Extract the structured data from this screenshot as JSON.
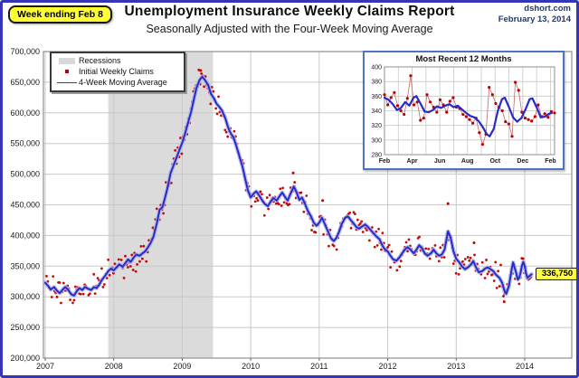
{
  "header": {
    "badge": "Week ending Feb 8",
    "title": "Unemployment Insurance Weekly Claims Report",
    "subtitle": "Seasonally Adjusted with the Four-Week Moving Average",
    "source": "dshort.com",
    "date": "February 13, 2014"
  },
  "legend": {
    "recessions": "Recessions",
    "weekly": "Initial Weekly Claims",
    "moving_average": "4-Week Moving Average"
  },
  "colors": {
    "ma_blue": "#2a2ac8",
    "ma_glow": "#aab4ea",
    "dot_red": "#c00000",
    "weekly_line_red": "#c56868",
    "recession_band": "#dbdbdb",
    "grid": "#c8c8c8",
    "plot_border": "#8f8f8f",
    "axis_text": "#1a1a1a",
    "outer_border": "#3535b8",
    "inset_border": "#4e76be",
    "callout_yellow": "#ffff44"
  },
  "chart_data": [
    {
      "type": "line",
      "title": "Unemployment Insurance Weekly Claims Report",
      "xlabel": "",
      "ylabel": "",
      "ylim": [
        200000,
        700000
      ],
      "xlim": [
        2007,
        2014.7
      ],
      "grid": true,
      "legend_position": "top-left",
      "y_ticks": [
        "700,000",
        "650,000",
        "600,000",
        "550,000",
        "500,000",
        "450,000",
        "400,000",
        "350,000",
        "300,000",
        "250,000",
        "200,000"
      ],
      "x_ticks": [
        "2007",
        "2008",
        "2009",
        "2010",
        "2011",
        "2012",
        "2013",
        "2014"
      ],
      "recession_band": {
        "start": 2007.92,
        "end": 2009.45
      },
      "latest": {
        "x": 2014.1,
        "value": 336750,
        "label": "336,750"
      },
      "series": [
        {
          "name": "4-Week Moving Average",
          "units": "thousands of claims",
          "points": [
            [
              2007.0,
              323
            ],
            [
              2007.04,
              318
            ],
            [
              2007.08,
              312
            ],
            [
              2007.13,
              316
            ],
            [
              2007.17,
              310
            ],
            [
              2007.21,
              306
            ],
            [
              2007.25,
              311
            ],
            [
              2007.29,
              316
            ],
            [
              2007.33,
              312
            ],
            [
              2007.38,
              304
            ],
            [
              2007.42,
              302
            ],
            [
              2007.46,
              309
            ],
            [
              2007.5,
              314
            ],
            [
              2007.54,
              311
            ],
            [
              2007.58,
              316
            ],
            [
              2007.63,
              313
            ],
            [
              2007.67,
              311
            ],
            [
              2007.71,
              316
            ],
            [
              2007.75,
              314
            ],
            [
              2007.79,
              320
            ],
            [
              2007.83,
              328
            ],
            [
              2007.88,
              335
            ],
            [
              2007.92,
              342
            ],
            [
              2007.96,
              346
            ],
            [
              2008.0,
              343
            ],
            [
              2008.04,
              348
            ],
            [
              2008.08,
              353
            ],
            [
              2008.13,
              349
            ],
            [
              2008.17,
              355
            ],
            [
              2008.21,
              361
            ],
            [
              2008.25,
              357
            ],
            [
              2008.29,
              364
            ],
            [
              2008.33,
              369
            ],
            [
              2008.38,
              367
            ],
            [
              2008.42,
              371
            ],
            [
              2008.46,
              374
            ],
            [
              2008.5,
              381
            ],
            [
              2008.54,
              388
            ],
            [
              2008.58,
              398
            ],
            [
              2008.63,
              420
            ],
            [
              2008.67,
              442
            ],
            [
              2008.71,
              446
            ],
            [
              2008.75,
              462
            ],
            [
              2008.79,
              480
            ],
            [
              2008.83,
              502
            ],
            [
              2008.88,
              516
            ],
            [
              2008.92,
              528
            ],
            [
              2008.96,
              540
            ],
            [
              2009.0,
              551
            ],
            [
              2009.04,
              566
            ],
            [
              2009.08,
              582
            ],
            [
              2009.13,
              602
            ],
            [
              2009.17,
              622
            ],
            [
              2009.21,
              641
            ],
            [
              2009.25,
              653
            ],
            [
              2009.29,
              659
            ],
            [
              2009.33,
              654
            ],
            [
              2009.38,
              645
            ],
            [
              2009.42,
              631
            ],
            [
              2009.46,
              624
            ],
            [
              2009.5,
              615
            ],
            [
              2009.54,
              610
            ],
            [
              2009.58,
              604
            ],
            [
              2009.63,
              591
            ],
            [
              2009.67,
              576
            ],
            [
              2009.71,
              566
            ],
            [
              2009.75,
              560
            ],
            [
              2009.79,
              546
            ],
            [
              2009.83,
              531
            ],
            [
              2009.88,
              512
            ],
            [
              2009.92,
              492
            ],
            [
              2009.96,
              473
            ],
            [
              2010.0,
              462
            ],
            [
              2010.04,
              468
            ],
            [
              2010.08,
              472
            ],
            [
              2010.13,
              464
            ],
            [
              2010.17,
              457
            ],
            [
              2010.21,
              451
            ],
            [
              2010.25,
              448
            ],
            [
              2010.29,
              455
            ],
            [
              2010.33,
              461
            ],
            [
              2010.38,
              457
            ],
            [
              2010.42,
              464
            ],
            [
              2010.46,
              470
            ],
            [
              2010.5,
              463
            ],
            [
              2010.54,
              457
            ],
            [
              2010.58,
              468
            ],
            [
              2010.63,
              480
            ],
            [
              2010.67,
              470
            ],
            [
              2010.71,
              458
            ],
            [
              2010.75,
              462
            ],
            [
              2010.79,
              452
            ],
            [
              2010.83,
              441
            ],
            [
              2010.88,
              431
            ],
            [
              2010.92,
              421
            ],
            [
              2010.96,
              416
            ],
            [
              2011.0,
              421
            ],
            [
              2011.04,
              429
            ],
            [
              2011.08,
              419
            ],
            [
              2011.13,
              406
            ],
            [
              2011.17,
              396
            ],
            [
              2011.21,
              391
            ],
            [
              2011.25,
              396
            ],
            [
              2011.29,
              406
            ],
            [
              2011.33,
              419
            ],
            [
              2011.38,
              429
            ],
            [
              2011.42,
              431
            ],
            [
              2011.46,
              425
            ],
            [
              2011.5,
              420
            ],
            [
              2011.54,
              414
            ],
            [
              2011.58,
              411
            ],
            [
              2011.63,
              415
            ],
            [
              2011.67,
              418
            ],
            [
              2011.71,
              414
            ],
            [
              2011.75,
              409
            ],
            [
              2011.79,
              404
            ],
            [
              2011.83,
              399
            ],
            [
              2011.88,
              394
            ],
            [
              2011.92,
              384
            ],
            [
              2011.96,
              377
            ],
            [
              2012.0,
              374
            ],
            [
              2012.04,
              367
            ],
            [
              2012.08,
              361
            ],
            [
              2012.13,
              359
            ],
            [
              2012.17,
              364
            ],
            [
              2012.21,
              371
            ],
            [
              2012.25,
              377
            ],
            [
              2012.29,
              381
            ],
            [
              2012.33,
              377
            ],
            [
              2012.38,
              371
            ],
            [
              2012.42,
              377
            ],
            [
              2012.46,
              384
            ],
            [
              2012.5,
              379
            ],
            [
              2012.54,
              371
            ],
            [
              2012.58,
              367
            ],
            [
              2012.63,
              371
            ],
            [
              2012.67,
              377
            ],
            [
              2012.71,
              371
            ],
            [
              2012.75,
              367
            ],
            [
              2012.79,
              369
            ],
            [
              2012.83,
              377
            ],
            [
              2012.88,
              407
            ],
            [
              2012.92,
              396
            ],
            [
              2012.96,
              374
            ],
            [
              2013.0,
              362
            ],
            [
              2013.04,
              357
            ],
            [
              2013.08,
              350
            ],
            [
              2013.13,
              345
            ],
            [
              2013.17,
              348
            ],
            [
              2013.21,
              352
            ],
            [
              2013.25,
              358
            ],
            [
              2013.29,
              348
            ],
            [
              2013.33,
              340
            ],
            [
              2013.38,
              342
            ],
            [
              2013.42,
              346
            ],
            [
              2013.46,
              348
            ],
            [
              2013.5,
              345
            ],
            [
              2013.54,
              342
            ],
            [
              2013.58,
              336
            ],
            [
              2013.63,
              331
            ],
            [
              2013.67,
              323
            ],
            [
              2013.71,
              308
            ],
            [
              2013.73,
              305
            ],
            [
              2013.77,
              318
            ],
            [
              2013.81,
              345
            ],
            [
              2013.83,
              356
            ],
            [
              2013.87,
              341
            ],
            [
              2013.9,
              328
            ],
            [
              2013.92,
              331
            ],
            [
              2013.94,
              340
            ],
            [
              2013.96,
              351
            ],
            [
              2013.98,
              357
            ],
            [
              2014.0,
              350
            ],
            [
              2014.02,
              338
            ],
            [
              2014.04,
              331
            ],
            [
              2014.06,
              333
            ],
            [
              2014.08,
              335
            ],
            [
              2014.1,
              336.75
            ]
          ]
        },
        {
          "name": "Initial Weekly Claims",
          "units": "thousands of claims",
          "render": "weekly_scatter_around_moving_average",
          "noise_amplitude_thousands": 19,
          "seed": 7,
          "outliers": [
            [
              2009.27,
              669
            ],
            [
              2010.62,
              502
            ],
            [
              2011.05,
              457
            ],
            [
              2012.88,
              452
            ],
            [
              2013.26,
              388
            ],
            [
              2013.7,
              292
            ]
          ]
        }
      ]
    },
    {
      "type": "line",
      "title": "Most Recent 12 Months",
      "ylim": [
        280,
        400
      ],
      "xlim_months": [
        0,
        12.3
      ],
      "grid": true,
      "y_ticks": [
        "400",
        "380",
        "360",
        "340",
        "320",
        "300",
        "280"
      ],
      "x_ticks": [
        "Feb",
        "Apr",
        "Jun",
        "Aug",
        "Oct",
        "Dec",
        "Feb"
      ],
      "series": [
        {
          "name": "4-Week Moving Average",
          "points": [
            [
              0,
              358
            ],
            [
              0.3,
              355
            ],
            [
              0.6,
              349
            ],
            [
              0.9,
              341
            ],
            [
              1.2,
              344
            ],
            [
              1.5,
              352
            ],
            [
              1.8,
              347
            ],
            [
              2.1,
              358
            ],
            [
              2.3,
              360
            ],
            [
              2.6,
              350
            ],
            [
              2.9,
              339
            ],
            [
              3.2,
              338
            ],
            [
              3.5,
              341
            ],
            [
              3.8,
              346
            ],
            [
              4.1,
              344
            ],
            [
              4.4,
              347
            ],
            [
              4.7,
              349
            ],
            [
              5.0,
              345
            ],
            [
              5.3,
              347
            ],
            [
              5.6,
              342
            ],
            [
              5.9,
              337
            ],
            [
              6.2,
              333
            ],
            [
              6.5,
              331
            ],
            [
              6.8,
              326
            ],
            [
              7.1,
              318
            ],
            [
              7.4,
              308
            ],
            [
              7.6,
              305
            ],
            [
              7.9,
              315
            ],
            [
              8.2,
              340
            ],
            [
              8.5,
              356
            ],
            [
              8.7,
              358
            ],
            [
              9.0,
              345
            ],
            [
              9.3,
              331
            ],
            [
              9.6,
              325
            ],
            [
              9.9,
              330
            ],
            [
              10.2,
              342
            ],
            [
              10.5,
              356
            ],
            [
              10.7,
              357
            ],
            [
              11.0,
              345
            ],
            [
              11.3,
              331
            ],
            [
              11.6,
              332
            ],
            [
              11.9,
              336
            ],
            [
              12.1,
              337
            ]
          ]
        },
        {
          "name": "Initial Weekly Claims",
          "weekly_values": [
            362,
            348,
            358,
            365,
            347,
            340,
            335,
            357,
            388,
            348,
            352,
            327,
            330,
            362,
            352,
            345,
            338,
            355,
            348,
            338,
            353,
            358,
            345,
            343,
            335,
            332,
            328,
            323,
            330,
            310,
            294,
            308,
            372,
            362,
            350,
            345,
            340,
            325,
            322,
            305,
            379,
            368,
            338,
            330,
            328,
            326,
            332,
            348,
            332,
            336,
            331,
            339,
            337
          ]
        }
      ]
    }
  ]
}
